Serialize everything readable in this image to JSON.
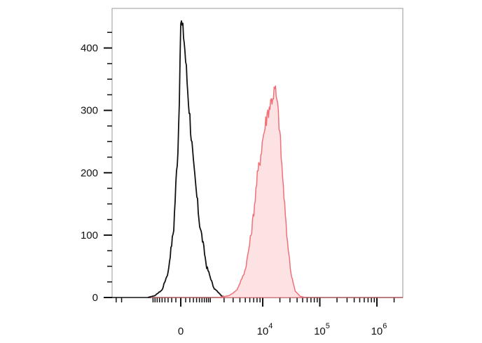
{
  "chart_data": {
    "type": "area",
    "title": "",
    "xlabel": "",
    "ylabel": "",
    "x_scale": "biexponential",
    "ylim": [
      0,
      450
    ],
    "y_ticks": [
      {
        "value": 0,
        "label": "0"
      },
      {
        "value": 100,
        "label": "100"
      },
      {
        "value": 200,
        "label": "200"
      },
      {
        "value": 300,
        "label": "300"
      },
      {
        "value": 400,
        "label": "400"
      }
    ],
    "x_ticks": [
      {
        "value": 0,
        "base": "0",
        "exp": ""
      },
      {
        "value": 10000,
        "base": "10",
        "exp": "4"
      },
      {
        "value": 100000,
        "base": "10",
        "exp": "5"
      },
      {
        "value": 1000000,
        "base": "10",
        "exp": "6"
      }
    ],
    "series": [
      {
        "color": "#111111",
        "fill": "none",
        "points": [
          [
            -1200,
            0
          ],
          [
            -800,
            3
          ],
          [
            -500,
            12
          ],
          [
            -300,
            40
          ],
          [
            -150,
            110
          ],
          [
            -50,
            250
          ],
          [
            -10,
            380
          ],
          [
            0,
            445
          ],
          [
            60,
            420
          ],
          [
            150,
            330
          ],
          [
            300,
            210
          ],
          [
            500,
            120
          ],
          [
            800,
            50
          ],
          [
            1200,
            15
          ],
          [
            1800,
            2
          ],
          [
            2500,
            0
          ]
        ]
      },
      {
        "color": "#f07078",
        "fill": "#fde2e4",
        "points": [
          [
            1500,
            0
          ],
          [
            2500,
            3
          ],
          [
            3500,
            12
          ],
          [
            5000,
            45
          ],
          [
            6500,
            110
          ],
          [
            8000,
            190
          ],
          [
            10000,
            255
          ],
          [
            12000,
            295
          ],
          [
            14000,
            315
          ],
          [
            16500,
            335
          ],
          [
            19000,
            290
          ],
          [
            22000,
            200
          ],
          [
            26000,
            105
          ],
          [
            31000,
            40
          ],
          [
            37000,
            10
          ],
          [
            45000,
            2
          ],
          [
            55000,
            0
          ]
        ]
      }
    ]
  }
}
